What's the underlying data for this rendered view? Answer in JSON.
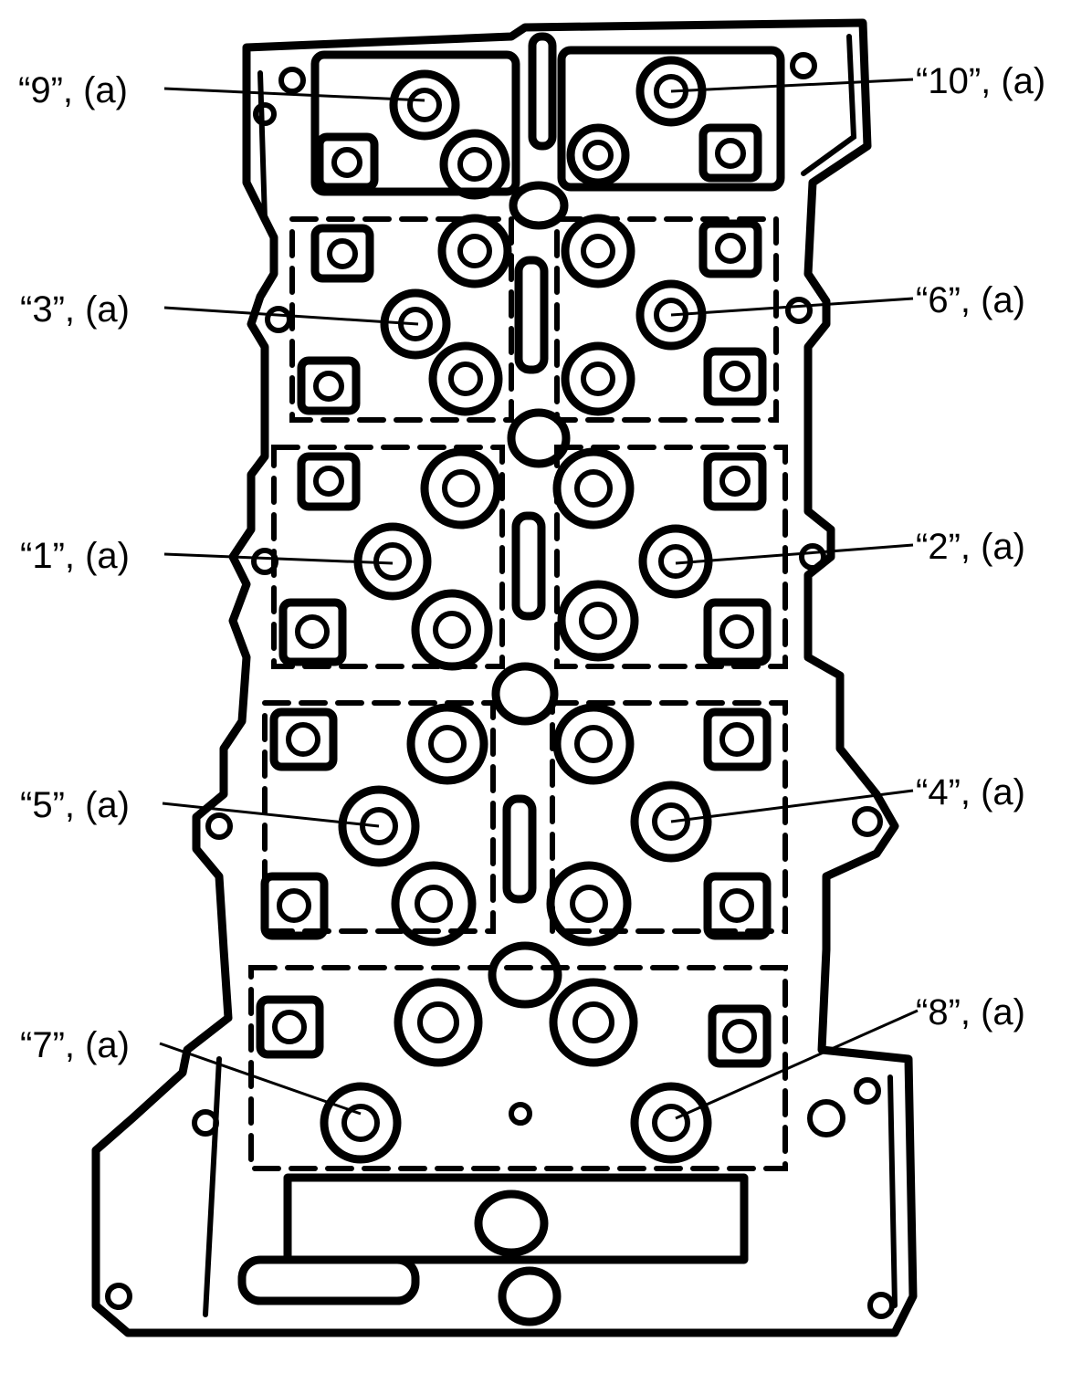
{
  "diagram": {
    "callouts": [
      {
        "id": "9",
        "text": "“9”, (a)"
      },
      {
        "id": "10",
        "text": "“10”, (a)"
      },
      {
        "id": "3",
        "text": "“3”, (a)"
      },
      {
        "id": "6",
        "text": "“6”, (a)"
      },
      {
        "id": "1",
        "text": "“1”, (a)"
      },
      {
        "id": "2",
        "text": "“2”, (a)"
      },
      {
        "id": "5",
        "text": "“5”, (a)"
      },
      {
        "id": "4",
        "text": "“4”, (a)"
      },
      {
        "id": "7",
        "text": "“7”, (a)"
      },
      {
        "id": "8",
        "text": "“8”, (a)"
      }
    ]
  }
}
